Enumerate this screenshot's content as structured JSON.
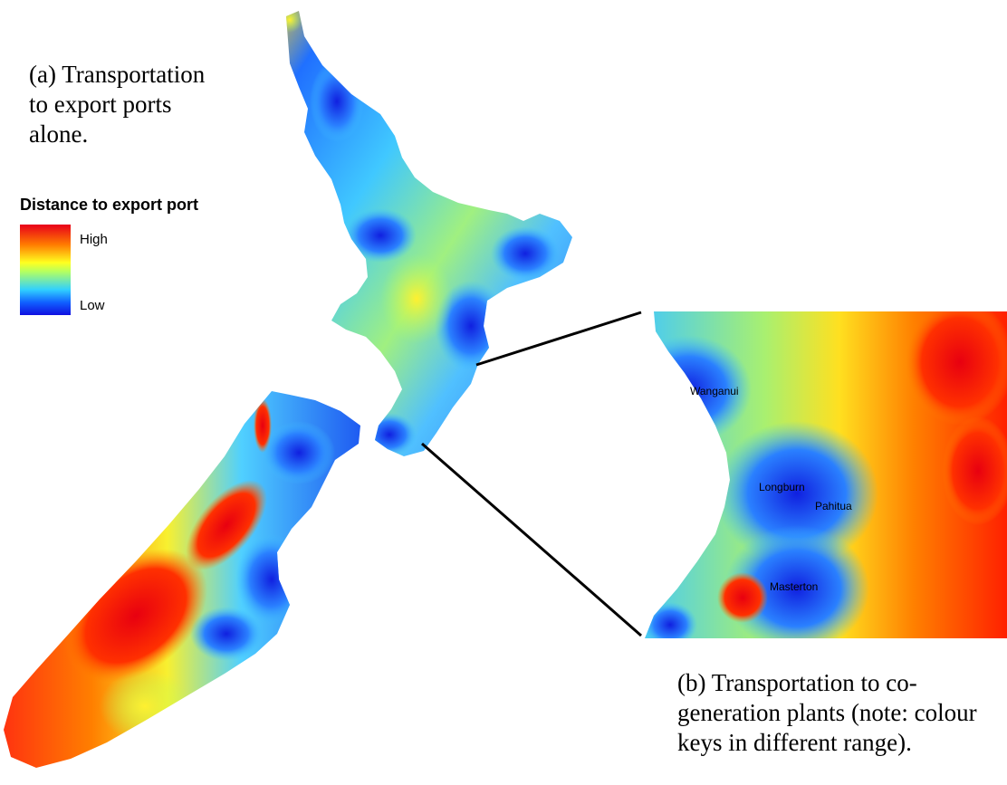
{
  "captions": {
    "a": "(a) Transportation\nto export ports\nalone.",
    "b": "(b) Transportation to co-\ngeneration plants (note: colour\nkeys in different range)."
  },
  "legend": {
    "title": "Distance to export port",
    "high": "High",
    "low": "Low",
    "colors": [
      "#e8001a",
      "#ff7a00",
      "#ffff20",
      "#30d0ff",
      "#1010e0"
    ]
  },
  "places": {
    "wanganui": "Wanganui",
    "longburn": "Longburn",
    "pahitua": "Pahitua",
    "masterton": "Masterton"
  }
}
